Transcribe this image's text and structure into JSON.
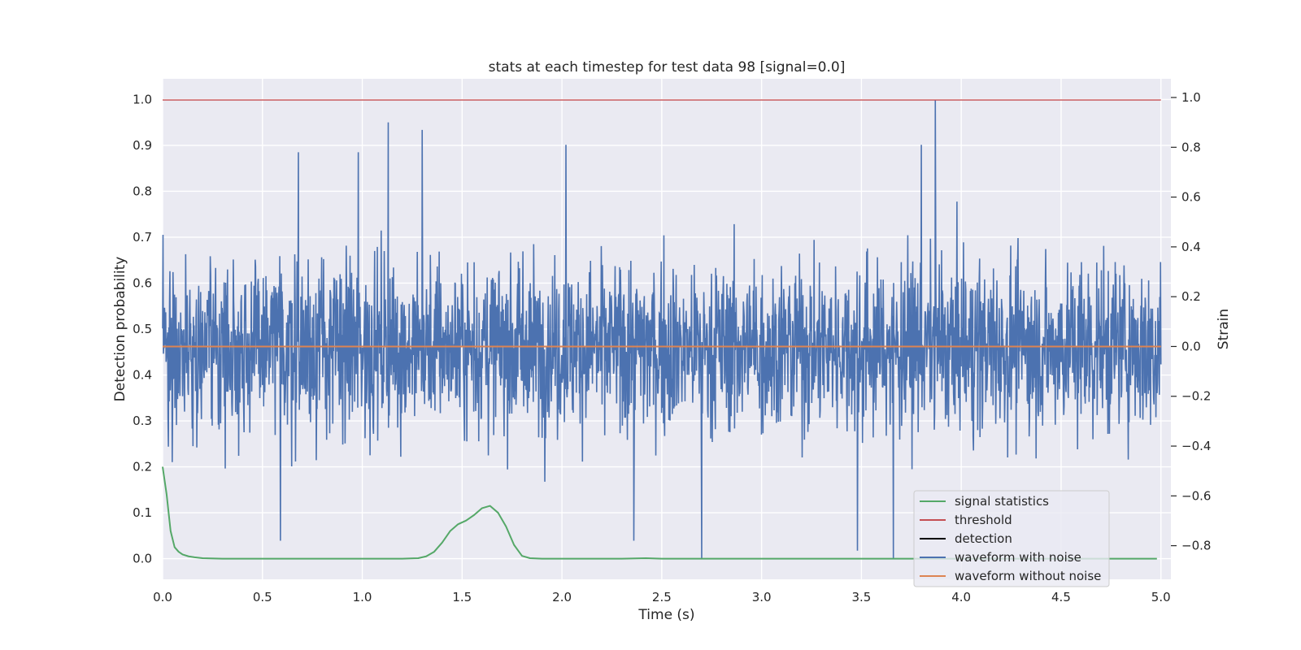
{
  "chart_data": {
    "type": "line",
    "title": "stats at each timestep for test data 98 [signal=0.0]",
    "xlabel": "Time (s)",
    "ylabel_left": "Detection probability",
    "ylabel_right": "Strain",
    "xlim": [
      0.0,
      5.05
    ],
    "ylim_left": [
      -0.045,
      1.045
    ],
    "ylim_right": [
      -0.935,
      1.075
    ],
    "grid": true,
    "legend_position": "lower-right",
    "x_ticks": [
      0.0,
      0.5,
      1.0,
      1.5,
      2.0,
      2.5,
      3.0,
      3.5,
      4.0,
      4.5,
      5.0
    ],
    "x_tick_labels": [
      "0.0",
      "0.5",
      "1.0",
      "1.5",
      "2.0",
      "2.5",
      "3.0",
      "3.5",
      "4.0",
      "4.5",
      "5.0"
    ],
    "y_ticks_left": [
      0.0,
      0.1,
      0.2,
      0.3,
      0.4,
      0.5,
      0.6,
      0.7,
      0.8,
      0.9,
      1.0
    ],
    "y_tick_labels_left": [
      "0.0",
      "0.1",
      "0.2",
      "0.3",
      "0.4",
      "0.5",
      "0.6",
      "0.7",
      "0.8",
      "0.9",
      "1.0"
    ],
    "y_ticks_right": [
      -0.8,
      -0.6,
      -0.4,
      -0.2,
      0.0,
      0.2,
      0.4,
      0.6,
      0.8,
      1.0
    ],
    "y_tick_labels_right": [
      "−0.8",
      "−0.6",
      "−0.4",
      "−0.2",
      "0.0",
      "0.2",
      "0.4",
      "0.6",
      "0.8",
      "1.0"
    ],
    "series": [
      {
        "name": "signal statistics",
        "axis": "left",
        "color": "#55a868",
        "x": [
          0.0,
          0.02,
          0.04,
          0.06,
          0.08,
          0.1,
          0.13,
          0.16,
          0.2,
          0.3,
          0.5,
          1.0,
          1.2,
          1.28,
          1.32,
          1.36,
          1.4,
          1.44,
          1.48,
          1.52,
          1.56,
          1.6,
          1.64,
          1.68,
          1.72,
          1.76,
          1.8,
          1.84,
          1.9,
          2.0,
          2.3,
          2.42,
          2.5,
          3.0,
          3.5,
          4.0,
          4.5,
          4.98
        ],
        "y": [
          0.2,
          0.14,
          0.06,
          0.025,
          0.015,
          0.009,
          0.005,
          0.003,
          0.001,
          0.0,
          0.0,
          0.0,
          0.0,
          0.001,
          0.005,
          0.015,
          0.035,
          0.06,
          0.075,
          0.083,
          0.095,
          0.11,
          0.115,
          0.1,
          0.07,
          0.03,
          0.006,
          0.001,
          0.0,
          0.0,
          0.0,
          0.001,
          0.0,
          0.0,
          0.0,
          0.0,
          0.0,
          0.0
        ]
      },
      {
        "name": "threshold",
        "axis": "right",
        "color": "#c44e52",
        "x": [
          0.0,
          5.0
        ],
        "y": [
          0.99,
          0.99
        ]
      },
      {
        "name": "detection",
        "axis": "left",
        "color": "#000000",
        "x": [],
        "y": []
      },
      {
        "name": "waveform with noise",
        "axis": "right",
        "color": "#4c72b0",
        "x_range": [
          0.0,
          5.0
        ],
        "description": "dense noise, mostly within -0.45..0.42 strain",
        "peaks": [
          {
            "x": 3.87,
            "y": 0.99
          },
          {
            "x": 1.13,
            "y": 0.9
          },
          {
            "x": 1.3,
            "y": 0.87
          },
          {
            "x": 2.02,
            "y": 0.81
          },
          {
            "x": 3.8,
            "y": 0.81
          },
          {
            "x": 0.98,
            "y": 0.78
          },
          {
            "x": 0.68,
            "y": 0.78
          },
          {
            "x": 2.7,
            "y": -0.85
          },
          {
            "x": 3.66,
            "y": -0.85
          },
          {
            "x": 3.48,
            "y": -0.82
          },
          {
            "x": 2.36,
            "y": -0.78
          },
          {
            "x": 0.59,
            "y": -0.78
          }
        ]
      },
      {
        "name": "waveform without noise",
        "axis": "right",
        "color": "#dd8452",
        "x": [
          0.0,
          5.0
        ],
        "y": [
          0.0,
          0.0
        ]
      }
    ]
  }
}
